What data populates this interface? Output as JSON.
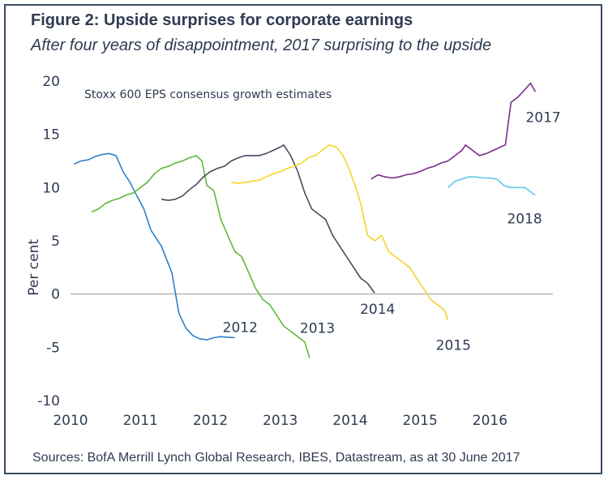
{
  "title": "Figure 2: Upside surprises for corporate earnings",
  "subtitle": "After four years of disappointment, 2017 surprising to the upside",
  "source": "Sources: BofA Merrill Lynch Global Research, IBES, Datastream, as at 30 June 2017",
  "chart_data": {
    "type": "line",
    "ylabel": "Per cent",
    "annotation": "Stoxx 600 EPS consensus growth estimates",
    "xlim": [
      2010,
      2016.9
    ],
    "ylim": [
      -10,
      20
    ],
    "xticks": [
      2010,
      2011,
      2012,
      2013,
      2014,
      2015,
      2016
    ],
    "yticks": [
      -10,
      -5,
      0,
      5,
      10,
      15,
      20
    ],
    "grid": false,
    "legend": "labels at line ends",
    "series": [
      {
        "name": "2012",
        "color": "#2f7fc3",
        "x": [
          2010.05,
          2010.15,
          2010.25,
          2010.35,
          2010.45,
          2010.55,
          2010.65,
          2010.75,
          2010.85,
          2010.95,
          2011.05,
          2011.15,
          2011.3,
          2011.45,
          2011.55,
          2011.65,
          2011.75,
          2011.85,
          2011.95,
          2012.05,
          2012.15,
          2012.25,
          2012.35
        ],
        "y": [
          12.2,
          12.5,
          12.6,
          12.9,
          13.1,
          13.2,
          13.0,
          11.5,
          10.5,
          9.2,
          8.0,
          6.0,
          4.5,
          2.0,
          -1.8,
          -3.2,
          -3.9,
          -4.2,
          -4.3,
          -4.1,
          -4.0,
          -4.05,
          -4.1
        ]
      },
      {
        "name": "2013",
        "color": "#5cb83c",
        "x": [
          2010.3,
          2010.4,
          2010.5,
          2010.6,
          2010.7,
          2010.8,
          2010.9,
          2011.0,
          2011.1,
          2011.2,
          2011.3,
          2011.4,
          2011.5,
          2011.6,
          2011.7,
          2011.8,
          2011.88,
          2011.95,
          2012.05,
          2012.15,
          2012.25,
          2012.35,
          2012.45,
          2012.55,
          2012.65,
          2012.75,
          2012.85,
          2012.95,
          2013.05,
          2013.15,
          2013.25,
          2013.35,
          2013.42
        ],
        "y": [
          7.7,
          8.0,
          8.5,
          8.8,
          9.0,
          9.3,
          9.5,
          10.0,
          10.5,
          11.3,
          11.8,
          12.0,
          12.3,
          12.5,
          12.8,
          13.0,
          12.5,
          10.2,
          9.7,
          7.0,
          5.5,
          4.0,
          3.5,
          2.0,
          0.5,
          -0.5,
          -1.0,
          -2.0,
          -3.0,
          -3.5,
          -4.0,
          -4.5,
          -6.0
        ]
      },
      {
        "name": "2014",
        "color": "#4a4a5e",
        "x": [
          2011.3,
          2011.4,
          2011.5,
          2011.6,
          2011.7,
          2011.8,
          2011.9,
          2012.0,
          2012.1,
          2012.2,
          2012.3,
          2012.4,
          2012.5,
          2012.6,
          2012.7,
          2012.8,
          2012.9,
          2013.0,
          2013.05,
          2013.15,
          2013.25,
          2013.35,
          2013.45,
          2013.55,
          2013.65,
          2013.75,
          2013.85,
          2013.95,
          2014.05,
          2014.15,
          2014.25,
          2014.35
        ],
        "y": [
          8.9,
          8.8,
          8.9,
          9.2,
          9.8,
          10.3,
          11.0,
          11.5,
          11.8,
          12.0,
          12.5,
          12.8,
          13.0,
          13.0,
          13.0,
          13.2,
          13.5,
          13.8,
          14.0,
          13.0,
          11.5,
          9.5,
          8.0,
          7.5,
          7.0,
          5.5,
          4.5,
          3.5,
          2.5,
          1.5,
          1.0,
          0.1
        ]
      },
      {
        "name": "2015",
        "color": "#f5d327",
        "x": [
          2012.3,
          2012.4,
          2012.5,
          2012.6,
          2012.7,
          2012.8,
          2012.9,
          2013.0,
          2013.1,
          2013.2,
          2013.3,
          2013.4,
          2013.5,
          2013.6,
          2013.7,
          2013.8,
          2013.9,
          2014.0,
          2014.08,
          2014.15,
          2014.25,
          2014.35,
          2014.45,
          2014.55,
          2014.65,
          2014.75,
          2014.85,
          2014.95,
          2015.05,
          2015.15,
          2015.25,
          2015.35,
          2015.4
        ],
        "y": [
          10.5,
          10.4,
          10.5,
          10.6,
          10.7,
          11.0,
          11.3,
          11.5,
          11.8,
          12.0,
          12.3,
          12.8,
          13.0,
          13.5,
          14.0,
          13.8,
          13.0,
          11.5,
          10.0,
          8.5,
          5.5,
          5.0,
          5.5,
          4.0,
          3.5,
          3.0,
          2.5,
          1.5,
          0.5,
          -0.5,
          -1.0,
          -1.5,
          -2.5
        ]
      },
      {
        "name": "2017",
        "color": "#7a2a8c",
        "x": [
          2014.3,
          2014.4,
          2014.5,
          2014.6,
          2014.7,
          2014.8,
          2014.9,
          2015.0,
          2015.1,
          2015.2,
          2015.3,
          2015.4,
          2015.5,
          2015.6,
          2015.65,
          2015.75,
          2015.85,
          2015.95,
          2016.05,
          2016.15,
          2016.22,
          2016.3,
          2016.4,
          2016.5,
          2016.58,
          2016.65
        ],
        "y": [
          10.8,
          11.2,
          11.0,
          10.9,
          11.0,
          11.2,
          11.3,
          11.5,
          11.8,
          12.0,
          12.3,
          12.5,
          13.0,
          13.5,
          14.0,
          13.5,
          13.0,
          13.2,
          13.5,
          13.8,
          14.0,
          18.0,
          18.5,
          19.2,
          19.8,
          19.0
        ]
      },
      {
        "name": "2018",
        "color": "#5bc8e8",
        "x": [
          2015.4,
          2015.5,
          2015.6,
          2015.7,
          2015.8,
          2015.9,
          2016.0,
          2016.1,
          2016.2,
          2016.3,
          2016.4,
          2016.5,
          2016.6,
          2016.65
        ],
        "y": [
          10.0,
          10.6,
          10.8,
          11.0,
          11.0,
          10.9,
          10.9,
          10.8,
          10.2,
          10.0,
          10.0,
          10.0,
          9.5,
          9.3
        ]
      }
    ]
  }
}
